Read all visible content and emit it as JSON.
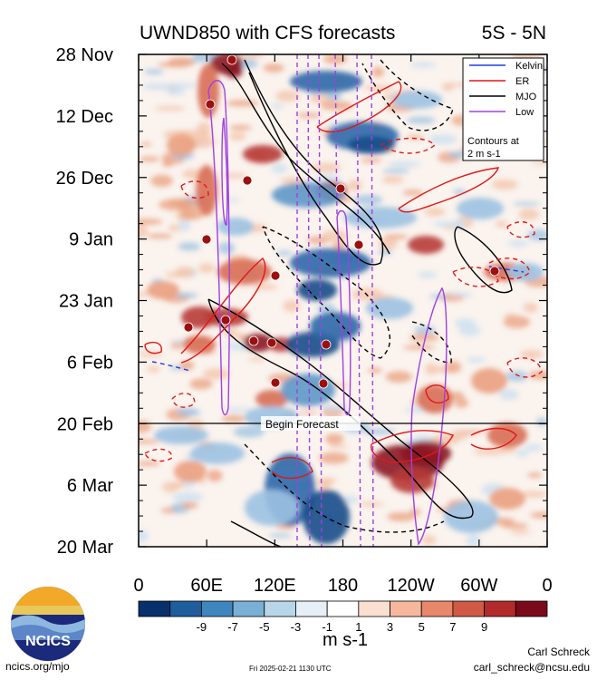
{
  "chart_data": {
    "type": "heatmap",
    "title": "UWND850 with CFS forecasts",
    "region": "5S - 5N",
    "x_ticks": [
      "0",
      "60E",
      "120E",
      "180",
      "120W",
      "60W",
      "0"
    ],
    "y_ticks": [
      "28 Nov",
      "12 Dec",
      "26 Dec",
      "9 Jan",
      "23 Jan",
      "6 Feb",
      "20 Feb",
      "6 Mar",
      "20 Mar"
    ],
    "forecast_label": "Begin Forecast",
    "legend": [
      {
        "name": "Kelvin",
        "color": "#1f3fe0"
      },
      {
        "name": "ER",
        "color": "#e01818"
      },
      {
        "name": "MJO",
        "color": "#000000"
      },
      {
        "name": "Low",
        "color": "#a040e0"
      }
    ],
    "legend_note": "Contours at 2 m s-1",
    "colorbar": {
      "labels": [
        "-9",
        "-7",
        "-5",
        "-3",
        "-1",
        "1",
        "3",
        "5",
        "7",
        "9"
      ],
      "colors": [
        "#08306b",
        "#1f5d9c",
        "#3f86bf",
        "#7ab0d5",
        "#b8d6ea",
        "#e6eef6",
        "#ffffff",
        "#fbe0d2",
        "#f5b89c",
        "#e8876a",
        "#d05a45",
        "#b32a2a",
        "#7a0a1a"
      ],
      "unit": "m s-1"
    }
  },
  "org": {
    "logo_text": "NCICS",
    "url": "ncics.org/mjo"
  },
  "timestamp": "Fri 2025-02-21 1130 UTC",
  "author": {
    "name": "Carl Schreck",
    "email": "carl_schreck@ncsu.edu"
  }
}
